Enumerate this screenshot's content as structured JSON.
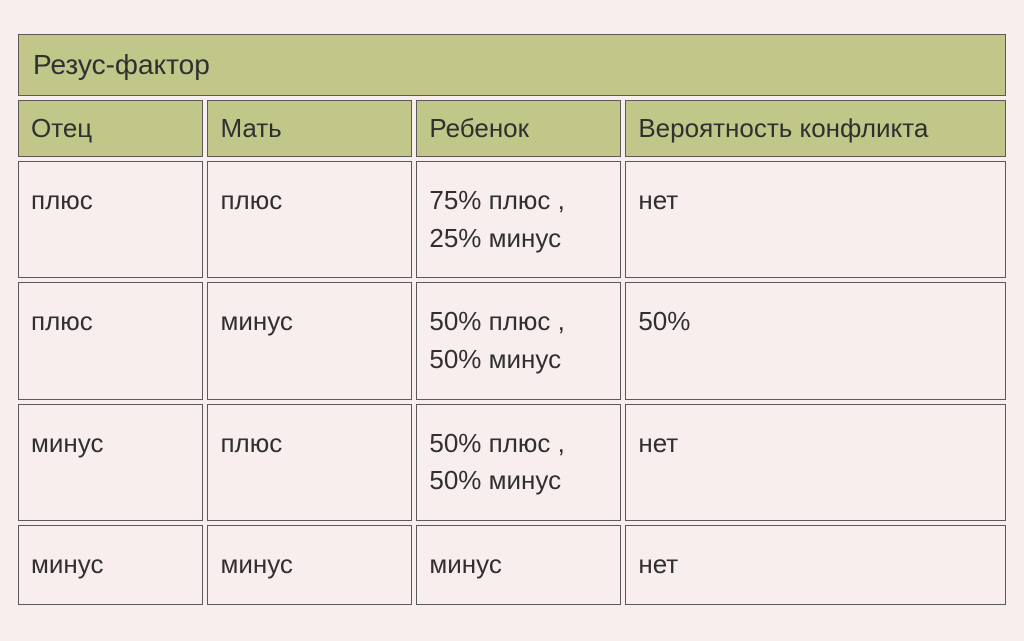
{
  "table": {
    "title": "Резус-фактор",
    "columns": [
      "Отец",
      "Мать",
      "Ребенок",
      "Вероятность конфликта"
    ],
    "rows": [
      [
        "плюс",
        "плюс",
        "75% плюс ,\n25% минус",
        "нет"
      ],
      [
        "плюс",
        "минус",
        "50% плюс ,\n50% минус",
        "50%"
      ],
      [
        "минус",
        "плюс",
        "50% плюс ,\n50% минус",
        "нет"
      ],
      [
        "минус",
        "минус",
        "минус",
        "нет"
      ]
    ],
    "styling": {
      "page_background": "#f9eeee",
      "header_background": "#c0c788",
      "cell_background": "#f9eeee",
      "border_color": "#5a5a5a",
      "text_color": "#303030",
      "title_fontsize": 28,
      "header_fontsize": 26,
      "cell_fontsize": 26,
      "border_spacing": 4,
      "column_widths_pct": [
        19,
        21,
        21,
        39
      ]
    }
  }
}
